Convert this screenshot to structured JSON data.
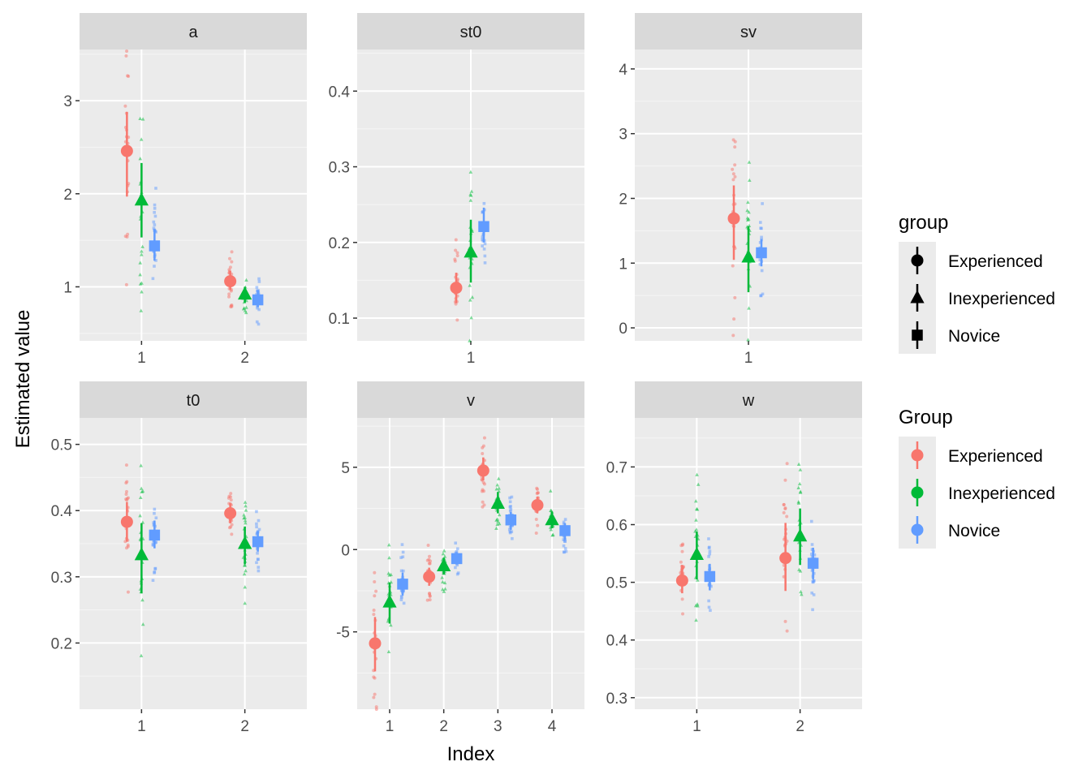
{
  "chart_data": {
    "type": "scatter",
    "xlabel": "Index",
    "ylabel": "Estimated value",
    "groups": [
      "Experienced",
      "Inexperienced",
      "Novice"
    ],
    "colors": {
      "Experienced": "#F8766D",
      "Inexperienced": "#00BA38",
      "Novice": "#619CFF"
    },
    "shapes": {
      "Experienced": "circle",
      "Inexperienced": "triangle",
      "Novice": "square"
    },
    "legends": [
      {
        "title": "group",
        "style": "shape",
        "items": [
          "Experienced",
          "Inexperienced",
          "Novice"
        ]
      },
      {
        "title": "Group",
        "style": "color",
        "items": [
          "Experienced",
          "Inexperienced",
          "Novice"
        ]
      }
    ],
    "panels": [
      {
        "name": "a",
        "x_ticks": [
          "1",
          "2"
        ],
        "ylim": [
          0.42,
          3.55
        ],
        "y_ticks": [
          1,
          2,
          3
        ],
        "summary": [
          {
            "index": 1,
            "group": "Experienced",
            "mean": 2.46,
            "low": 1.97,
            "high": 2.88
          },
          {
            "index": 1,
            "group": "Inexperienced",
            "mean": 1.93,
            "low": 1.53,
            "high": 2.33
          },
          {
            "index": 1,
            "group": "Novice",
            "mean": 1.44,
            "low": 1.28,
            "high": 1.62
          },
          {
            "index": 2,
            "group": "Experienced",
            "mean": 1.06,
            "low": 0.97,
            "high": 1.17
          },
          {
            "index": 2,
            "group": "Inexperienced",
            "mean": 0.92,
            "low": 0.83,
            "high": 1.0
          },
          {
            "index": 2,
            "group": "Novice",
            "mean": 0.86,
            "low": 0.78,
            "high": 0.96
          }
        ]
      },
      {
        "name": "st0",
        "x_ticks": [
          "1"
        ],
        "ylim": [
          0.07,
          0.455
        ],
        "y_ticks": [
          0.1,
          0.2,
          0.3,
          0.4
        ],
        "summary": [
          {
            "index": 1,
            "group": "Experienced",
            "mean": 0.14,
            "low": 0.12,
            "high": 0.16
          },
          {
            "index": 1,
            "group": "Inexperienced",
            "mean": 0.187,
            "low": 0.147,
            "high": 0.23
          },
          {
            "index": 1,
            "group": "Novice",
            "mean": 0.221,
            "low": 0.2,
            "high": 0.246
          }
        ]
      },
      {
        "name": "sv",
        "x_ticks": [
          "1"
        ],
        "ylim": [
          -0.2,
          4.3
        ],
        "y_ticks": [
          0,
          1,
          2,
          3,
          4
        ],
        "summary": [
          {
            "index": 1,
            "group": "Experienced",
            "mean": 1.69,
            "low": 1.05,
            "high": 2.2
          },
          {
            "index": 1,
            "group": "Inexperienced",
            "mean": 1.09,
            "low": 0.55,
            "high": 1.57
          },
          {
            "index": 1,
            "group": "Novice",
            "mean": 1.16,
            "low": 0.95,
            "high": 1.37
          }
        ]
      },
      {
        "name": "t0",
        "x_ticks": [
          "1",
          "2"
        ],
        "ylim": [
          0.1,
          0.54
        ],
        "y_ticks": [
          0.2,
          0.3,
          0.4,
          0.5
        ],
        "summary": [
          {
            "index": 1,
            "group": "Experienced",
            "mean": 0.383,
            "low": 0.353,
            "high": 0.413
          },
          {
            "index": 1,
            "group": "Inexperienced",
            "mean": 0.333,
            "low": 0.275,
            "high": 0.381
          },
          {
            "index": 1,
            "group": "Novice",
            "mean": 0.363,
            "low": 0.343,
            "high": 0.385
          },
          {
            "index": 2,
            "group": "Experienced",
            "mean": 0.396,
            "low": 0.381,
            "high": 0.411
          },
          {
            "index": 2,
            "group": "Inexperienced",
            "mean": 0.35,
            "low": 0.319,
            "high": 0.376
          },
          {
            "index": 2,
            "group": "Novice",
            "mean": 0.353,
            "low": 0.338,
            "high": 0.369
          }
        ]
      },
      {
        "name": "v",
        "x_ticks": [
          "1",
          "2",
          "3",
          "4"
        ],
        "ylim": [
          -9.7,
          8.0
        ],
        "y_ticks": [
          -5,
          0,
          5
        ],
        "summary": [
          {
            "index": 1,
            "group": "Experienced",
            "mean": -5.7,
            "low": -7.4,
            "high": -4.1
          },
          {
            "index": 1,
            "group": "Inexperienced",
            "mean": -3.2,
            "low": -4.5,
            "high": -2.0
          },
          {
            "index": 1,
            "group": "Novice",
            "mean": -2.1,
            "low": -2.8,
            "high": -1.4
          },
          {
            "index": 2,
            "group": "Experienced",
            "mean": -1.65,
            "low": -2.2,
            "high": -1.1
          },
          {
            "index": 2,
            "group": "Inexperienced",
            "mean": -1.0,
            "low": -1.5,
            "high": -0.5
          },
          {
            "index": 2,
            "group": "Novice",
            "mean": -0.55,
            "low": -0.9,
            "high": -0.2
          },
          {
            "index": 3,
            "group": "Experienced",
            "mean": 4.8,
            "low": 4.2,
            "high": 5.6
          },
          {
            "index": 3,
            "group": "Inexperienced",
            "mean": 2.8,
            "low": 2.2,
            "high": 3.5
          },
          {
            "index": 3,
            "group": "Novice",
            "mean": 1.8,
            "low": 1.2,
            "high": 2.3
          },
          {
            "index": 4,
            "group": "Experienced",
            "mean": 2.7,
            "low": 2.2,
            "high": 3.2
          },
          {
            "index": 4,
            "group": "Inexperienced",
            "mean": 1.8,
            "low": 1.3,
            "high": 2.3
          },
          {
            "index": 4,
            "group": "Novice",
            "mean": 1.15,
            "low": 0.6,
            "high": 1.6
          }
        ]
      },
      {
        "name": "w",
        "x_ticks": [
          "1",
          "2"
        ],
        "ylim": [
          0.28,
          0.785
        ],
        "y_ticks": [
          0.3,
          0.4,
          0.5,
          0.6,
          0.7
        ],
        "summary": [
          {
            "index": 1,
            "group": "Experienced",
            "mean": 0.503,
            "low": 0.481,
            "high": 0.53
          },
          {
            "index": 1,
            "group": "Inexperienced",
            "mean": 0.548,
            "low": 0.505,
            "high": 0.588
          },
          {
            "index": 1,
            "group": "Novice",
            "mean": 0.51,
            "low": 0.486,
            "high": 0.532
          },
          {
            "index": 2,
            "group": "Experienced",
            "mean": 0.542,
            "low": 0.485,
            "high": 0.603
          },
          {
            "index": 2,
            "group": "Inexperienced",
            "mean": 0.58,
            "low": 0.53,
            "high": 0.628
          },
          {
            "index": 2,
            "group": "Novice",
            "mean": 0.533,
            "low": 0.505,
            "high": 0.56
          }
        ]
      }
    ]
  }
}
